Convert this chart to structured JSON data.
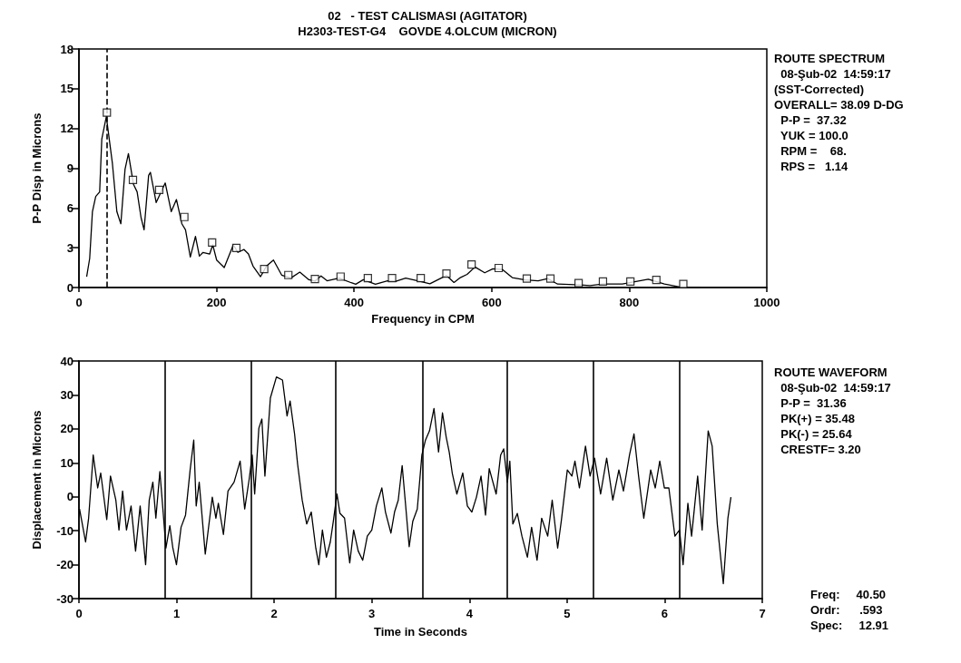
{
  "chart_data": [
    {
      "type": "line",
      "title": "02   - TEST CALISMASI (AGITATOR)",
      "subtitle": "H2303-TEST-G4    GOVDE 4.OLCUM (MICRON)",
      "xlabel": "Frequency in CPM",
      "ylabel": "P-P Disp in Microns",
      "xlim": [
        0,
        1000
      ],
      "xticks": [
        0,
        200,
        400,
        600,
        800,
        1000
      ],
      "ylim": [
        0,
        18
      ],
      "yticks": [
        0,
        3,
        6,
        9,
        12,
        15,
        18
      ],
      "grid": false,
      "series": [
        {
          "color": "#000000",
          "marker": "none",
          "x": [
            11.2,
            15.6,
            19.6,
            24.4,
            30.1,
            33.2,
            39.8,
            48.6,
            55.1,
            60.9,
            67.0,
            71.9,
            79.3,
            84.6,
            90.3,
            94.7,
            101.3,
            103.9,
            112.3,
            125.4,
            134.2,
            141.7,
            149.6,
            154.9,
            161.9,
            169.4,
            175.1,
            180.4,
            190.1,
            194.5,
            200.2,
            211.2,
            224.4,
            231.0,
            239.8,
            246.4,
            253.0,
            264.0,
            272.7,
            282.8,
            294.7,
            307.9,
            321.1,
            334.3,
            343.1,
            351.9,
            360.7,
            378.3,
            395.9,
            402.4,
            413.4,
            431.0,
            448.6,
            461.8,
            475.0,
            492.6,
            510.2,
            534.4,
            545.2,
            554.5,
            564.3,
            575.8,
            589.9,
            601.7,
            615.8,
            629.9,
            648.8,
            667.6,
            681.8,
            695.9,
            728.8,
            742.9,
            761.8,
            790.0,
            827.7,
            851.2,
            874.8,
            903.0
          ],
          "values": [
            0.82,
            2.19,
            5.73,
            6.87,
            7.21,
            11.2,
            12.9,
            9.38,
            5.73,
            4.81,
            8.92,
            10.1,
            7.78,
            7.21,
            5.27,
            4.36,
            8.46,
            8.69,
            6.41,
            7.89,
            5.73,
            6.64,
            4.81,
            4.36,
            2.3,
            3.85,
            2.37,
            2.65,
            2.53,
            3.22,
            2.07,
            1.51,
            3.22,
            2.65,
            2.87,
            2.53,
            1.62,
            0.82,
            1.62,
            2.07,
            0.94,
            0.71,
            1.16,
            0.59,
            0.48,
            0.87,
            0.51,
            0.71,
            0.36,
            0.25,
            0.59,
            0.25,
            0.51,
            0.48,
            0.71,
            0.51,
            0.28,
            0.91,
            0.38,
            0.75,
            0.99,
            1.55,
            1.11,
            1.41,
            1.36,
            0.75,
            0.58,
            0.5,
            0.67,
            0.26,
            0.19,
            0.14,
            0.26,
            0.26,
            0.63,
            0.26,
            0.02,
            0
          ]
        },
        {
          "type": "scatter",
          "color": "#000000",
          "marker": "square",
          "x": [
            40.6,
            78.5,
            116.7,
            153.2,
            193.6,
            228.8,
            269.3,
            304.4,
            343.1,
            380.4,
            420.0,
            455.2,
            496.9,
            534.3,
            570.8,
            610.2,
            651.1,
            685.4,
            726.4,
            761.8,
            801.7,
            839.4,
            878.6
          ],
          "values": [
            13.2,
            8.12,
            7.37,
            5.32,
            3.4,
            2.99,
            1.39,
            0.94,
            0.64,
            0.82,
            0.71,
            0.71,
            0.71,
            1.05,
            1.73,
            1.47,
            0.68,
            0.68,
            0.33,
            0.45,
            0.45,
            0.58,
            0.26
          ]
        }
      ],
      "ref_lines": [
        {
          "axis": "x",
          "value": 40.5,
          "line_style": "dashed",
          "color": "#000000"
        }
      ],
      "annotations": [
        "ROUTE SPECTRUM\n  08-Şub-02  14:59:17\n(SST-Corrected)\nOVERALL= 38.09 D-DG\n  P-P =  37.32\n  YUK = 100.0\n  RPM =    68.\n  RPS =   1.14"
      ]
    },
    {
      "type": "line",
      "xlabel": "Time in Seconds",
      "ylabel": "Displacement in Microns",
      "xlim": [
        0,
        7
      ],
      "xticks": [
        0,
        1,
        2,
        3,
        4,
        5,
        6,
        7
      ],
      "ylim": [
        -30,
        40
      ],
      "yticks": [
        -30,
        -20,
        -10,
        0,
        10,
        20,
        30,
        40
      ],
      "grid": false,
      "series": [
        {
          "color": "#000000",
          "marker": "none",
          "x": [
            0.006,
            0.068,
            0.099,
            0.146,
            0.192,
            0.223,
            0.285,
            0.323,
            0.378,
            0.41,
            0.447,
            0.487,
            0.534,
            0.58,
            0.627,
            0.683,
            0.72,
            0.757,
            0.788,
            0.829,
            0.86,
            0.891,
            0.931,
            0.962,
            0.999,
            1.046,
            1.092,
            1.139,
            1.176,
            1.201,
            1.232,
            1.294,
            1.366,
            1.403,
            1.428,
            1.48,
            1.527,
            1.589,
            1.651,
            1.698,
            1.744,
            1.775,
            1.8,
            1.843,
            1.874,
            1.905,
            1.961,
            2.023,
            2.085,
            2.132,
            2.163,
            2.209,
            2.24,
            2.287,
            2.333,
            2.38,
            2.426,
            2.457,
            2.494,
            2.535,
            2.575,
            2.606,
            2.643,
            2.674,
            2.721,
            2.774,
            2.814,
            2.861,
            2.907,
            2.954,
            3.0,
            3.047,
            3.103,
            3.14,
            3.196,
            3.233,
            3.271,
            3.311,
            3.342,
            3.383,
            3.42,
            3.466,
            3.513,
            3.55,
            3.591,
            3.637,
            3.684,
            3.724,
            3.762,
            3.793,
            3.824,
            3.871,
            3.932,
            3.979,
            4.025,
            4.072,
            4.119,
            4.165,
            4.203,
            4.274,
            4.32,
            4.351,
            4.389,
            4.414,
            4.445,
            4.491,
            4.538,
            4.594,
            4.637,
            4.693,
            4.74,
            4.802,
            4.848,
            4.904,
            4.941,
            5.003,
            5.05,
            5.081,
            5.127,
            5.189,
            5.236,
            5.282,
            5.344,
            5.406,
            5.469,
            5.531,
            5.578,
            5.64,
            5.686,
            5.733,
            5.786,
            5.857,
            5.904,
            5.95,
            5.997,
            6.043,
            6.105,
            6.152,
            6.189,
            6.238,
            6.276,
            6.338,
            6.384,
            6.446,
            6.487,
            6.539,
            6.601,
            6.648,
            6.679
          ],
          "values": [
            -3.6,
            -13.3,
            -6.3,
            12.3,
            2.6,
            7.0,
            -6.7,
            6.1,
            -1.0,
            -9.8,
            1.7,
            -9.8,
            -2.7,
            -16.0,
            -2.7,
            -20.0,
            -1.0,
            4.3,
            -6.3,
            7.4,
            -3.6,
            -15.1,
            -8.5,
            -15.1,
            -20.0,
            -9.0,
            -5.4,
            7.9,
            16.7,
            -2.7,
            4.3,
            -16.9,
            -0.1,
            -6.3,
            -1.9,
            -11.1,
            1.7,
            4.3,
            10.5,
            -3.6,
            5.2,
            12.3,
            0.8,
            20.2,
            22.9,
            6.1,
            29.1,
            35.3,
            34.4,
            23.8,
            28.2,
            18.5,
            9.6,
            -1.0,
            -8.0,
            -4.5,
            -15.1,
            -20.0,
            -9.8,
            -17.8,
            -13.3,
            -7.2,
            0.8,
            -4.9,
            -6.3,
            -19.5,
            -9.8,
            -16.0,
            -18.7,
            -11.6,
            -9.8,
            -2.7,
            2.6,
            -4.5,
            -10.7,
            -4.5,
            -1.0,
            9.2,
            -1.0,
            -14.7,
            -7.2,
            -3.6,
            12.3,
            16.7,
            19.4,
            26.0,
            13.2,
            24.7,
            17.6,
            13.2,
            7.0,
            0.8,
            7.0,
            -2.7,
            -4.5,
            -0.1,
            6.1,
            -5.4,
            8.3,
            0.8,
            12.3,
            14.1,
            4.3,
            10.5,
            -8.0,
            -4.9,
            -11.6,
            -17.8,
            -9.0,
            -18.7,
            -6.3,
            -11.6,
            -1.0,
            -15.1,
            -7.2,
            7.9,
            6.1,
            10.5,
            2.6,
            14.9,
            6.1,
            11.4,
            0.8,
            11.4,
            -1.0,
            7.9,
            1.7,
            12.3,
            18.5,
            6.1,
            -6.3,
            7.9,
            2.6,
            10.5,
            2.6,
            2.6,
            -11.6,
            -9.8,
            -20.0,
            -1.9,
            -11.6,
            6.1,
            -9.8,
            19.4,
            14.9,
            -8.0,
            -25.6,
            -6.3,
            -0.1
          ]
        }
      ],
      "ref_lines": [
        {
          "axis": "x",
          "value": 0.88,
          "line_style": "solid",
          "color": "#000000"
        },
        {
          "axis": "x",
          "value": 1.76,
          "line_style": "solid",
          "color": "#000000"
        },
        {
          "axis": "x",
          "value": 2.63,
          "line_style": "solid",
          "color": "#000000"
        },
        {
          "axis": "x",
          "value": 3.52,
          "line_style": "solid",
          "color": "#000000"
        },
        {
          "axis": "x",
          "value": 4.39,
          "line_style": "solid",
          "color": "#000000"
        },
        {
          "axis": "x",
          "value": 5.27,
          "line_style": "solid",
          "color": "#000000"
        },
        {
          "axis": "x",
          "value": 6.15,
          "line_style": "solid",
          "color": "#000000"
        }
      ],
      "annotations": [
        "ROUTE WAVEFORM\n  08-Şub-02  14:59:17\n  P-P =  31.36\n  PK(+) = 35.48\n  PK(-) = 25.64\n  CRESTF= 3.20",
        "Freq:     40.50\nOrdr:      .593\nSpec:     12.91"
      ]
    }
  ]
}
